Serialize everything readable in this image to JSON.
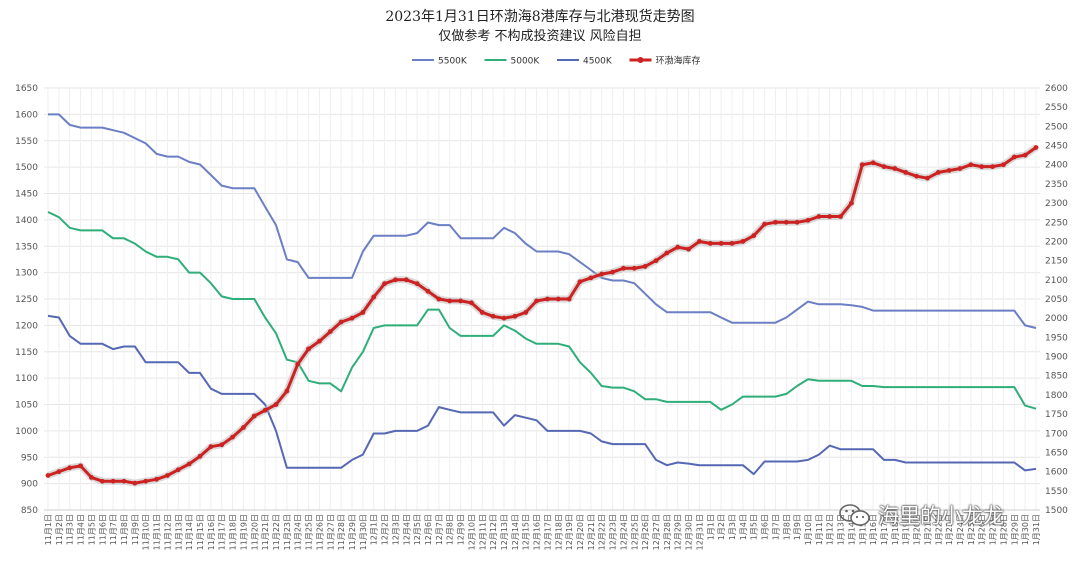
{
  "header": {
    "title": "2023年1月31日环渤海8港库存与北港现货走势图",
    "subtitle": "仅做参考 不构成投资建议 风险自担"
  },
  "watermark": "海里的小龙龙",
  "chart_data": {
    "type": "line",
    "title": "2023年1月31日环渤海8港库存与北港现货走势图",
    "subtitle": "仅做参考 不构成投资建议 风险自担",
    "legend_position": "top",
    "grid": true,
    "ylim_left": [
      850,
      1650
    ],
    "ylim_right": [
      1500,
      2600
    ],
    "yticks_left": [
      "850",
      "900",
      "950",
      "1000",
      "1050",
      "1100",
      "1150",
      "1200",
      "1250",
      "1300",
      "1350",
      "1400",
      "1450",
      "1500",
      "1550",
      "1600",
      "1650"
    ],
    "yticks_right": [
      "1500",
      "1550",
      "1600",
      "1650",
      "1700",
      "1750",
      "1800",
      "1850",
      "1900",
      "1950",
      "2000",
      "2050",
      "2100",
      "2150",
      "2200",
      "2250",
      "2300",
      "2350",
      "2400",
      "2450",
      "2500",
      "2550",
      "2600"
    ],
    "categories": [
      "11月1日",
      "11月2日",
      "11月3日",
      "11月4日",
      "11月5日",
      "11月6日",
      "11月7日",
      "11月8日",
      "11月9日",
      "11月10日",
      "11月11日",
      "11月12日",
      "11月13日",
      "11月14日",
      "11月15日",
      "11月16日",
      "11月17日",
      "11月18日",
      "11月19日",
      "11月20日",
      "11月21日",
      "11月22日",
      "11月23日",
      "11月24日",
      "11月25日",
      "11月26日",
      "11月27日",
      "11月28日",
      "11月29日",
      "11月30日",
      "12月1日",
      "12月2日",
      "12月3日",
      "12月4日",
      "12月5日",
      "12月6日",
      "12月7日",
      "12月8日",
      "12月9日",
      "12月10日",
      "12月11日",
      "12月12日",
      "12月13日",
      "12月14日",
      "12月15日",
      "12月16日",
      "12月17日",
      "12月18日",
      "12月19日",
      "12月20日",
      "12月21日",
      "12月22日",
      "12月23日",
      "12月24日",
      "12月25日",
      "12月26日",
      "12月27日",
      "12月28日",
      "12月29日",
      "12月30日",
      "12月31日",
      "1月1日",
      "1月2日",
      "1月3日",
      "1月4日",
      "1月5日",
      "1月6日",
      "1月7日",
      "1月8日",
      "1月9日",
      "1月10日",
      "1月11日",
      "1月12日",
      "1月13日",
      "1月14日",
      "1月15日",
      "1月16日",
      "1月17日",
      "1月18日",
      "1月19日",
      "1月20日",
      "1月21日",
      "1月22日",
      "1月23日",
      "1月24日",
      "1月25日",
      "1月26日",
      "1月27日",
      "1月28日",
      "1月29日",
      "1月30日",
      "1月31日"
    ],
    "series": [
      {
        "name": "5500K",
        "axis": "left",
        "color": "#6b7fc4",
        "values": [
          1600,
          1600,
          1580,
          1575,
          1575,
          1575,
          1570,
          1565,
          1555,
          1545,
          1525,
          1520,
          1520,
          1510,
          1505,
          1485,
          1465,
          1460,
          1460,
          1460,
          1425,
          1390,
          1325,
          1320,
          1290,
          1290,
          1290,
          1290,
          1290,
          1340,
          1370,
          1370,
          1370,
          1370,
          1375,
          1395,
          1390,
          1390,
          1365,
          1365,
          1365,
          1365,
          1385,
          1375,
          1355,
          1340,
          1340,
          1340,
          1335,
          1320,
          1305,
          1290,
          1285,
          1285,
          1280,
          1260,
          1240,
          1225,
          1225,
          1225,
          1225,
          1225,
          1215,
          1205,
          1205,
          1205,
          1205,
          1205,
          1215,
          1230,
          1245,
          1240,
          1240,
          1240,
          1238,
          1235,
          1228,
          1228,
          1228,
          1228,
          1228,
          1228,
          1228,
          1228,
          1228,
          1228,
          1228,
          1228,
          1228,
          1228,
          1200,
          1195
        ]
      },
      {
        "name": "5000K",
        "axis": "left",
        "color": "#2fae7a",
        "values": [
          1415,
          1405,
          1385,
          1380,
          1380,
          1380,
          1365,
          1365,
          1355,
          1340,
          1330,
          1330,
          1325,
          1300,
          1300,
          1280,
          1255,
          1250,
          1250,
          1250,
          1215,
          1185,
          1135,
          1130,
          1095,
          1090,
          1090,
          1075,
          1120,
          1150,
          1195,
          1200,
          1200,
          1200,
          1200,
          1230,
          1230,
          1195,
          1180,
          1180,
          1180,
          1180,
          1200,
          1190,
          1175,
          1165,
          1165,
          1165,
          1160,
          1130,
          1110,
          1085,
          1082,
          1082,
          1075,
          1060,
          1060,
          1055,
          1055,
          1055,
          1055,
          1055,
          1040,
          1050,
          1065,
          1065,
          1065,
          1065,
          1070,
          1085,
          1098,
          1095,
          1095,
          1095,
          1095,
          1085,
          1085,
          1083,
          1083,
          1083,
          1083,
          1083,
          1083,
          1083,
          1083,
          1083,
          1083,
          1083,
          1083,
          1083,
          1048,
          1042
        ]
      },
      {
        "name": "4500K",
        "axis": "left",
        "color": "#5568b3",
        "values": [
          1218,
          1215,
          1180,
          1165,
          1165,
          1165,
          1155,
          1160,
          1160,
          1130,
          1130,
          1130,
          1130,
          1110,
          1110,
          1080,
          1070,
          1070,
          1070,
          1070,
          1050,
          1000,
          930,
          930,
          930,
          930,
          930,
          930,
          945,
          955,
          995,
          995,
          1000,
          1000,
          1000,
          1010,
          1045,
          1040,
          1035,
          1035,
          1035,
          1035,
          1010,
          1030,
          1025,
          1020,
          1000,
          1000,
          1000,
          1000,
          995,
          980,
          975,
          975,
          975,
          975,
          945,
          935,
          940,
          938,
          935,
          935,
          935,
          935,
          935,
          918,
          942,
          942,
          942,
          942,
          945,
          955,
          972,
          965,
          965,
          965,
          965,
          945,
          945,
          940,
          940,
          940,
          940,
          940,
          940,
          940,
          940,
          940,
          940,
          940,
          925,
          928
        ]
      },
      {
        "name": "环渤海库存",
        "axis": "right",
        "color": "#cc2222",
        "values": [
          1590,
          1600,
          1610,
          1615,
          1585,
          1575,
          1575,
          1575,
          1570,
          1575,
          1580,
          1590,
          1605,
          1620,
          1640,
          1665,
          1670,
          1690,
          1715,
          1745,
          1760,
          1775,
          1810,
          1880,
          1920,
          1940,
          1965,
          1990,
          2000,
          2015,
          2055,
          2090,
          2100,
          2100,
          2090,
          2070,
          2050,
          2045,
          2045,
          2040,
          2015,
          2005,
          2000,
          2005,
          2015,
          2045,
          2050,
          2050,
          2050,
          2095,
          2105,
          2115,
          2120,
          2130,
          2130,
          2135,
          2150,
          2170,
          2185,
          2180,
          2200,
          2195,
          2195,
          2195,
          2200,
          2215,
          2245,
          2250,
          2250,
          2250,
          2255,
          2265,
          2265,
          2265,
          2300,
          2400,
          2405,
          2395,
          2390,
          2380,
          2370,
          2365,
          2380,
          2385,
          2390,
          2400,
          2395,
          2395,
          2400,
          2420,
          2425,
          2445
        ]
      }
    ]
  }
}
